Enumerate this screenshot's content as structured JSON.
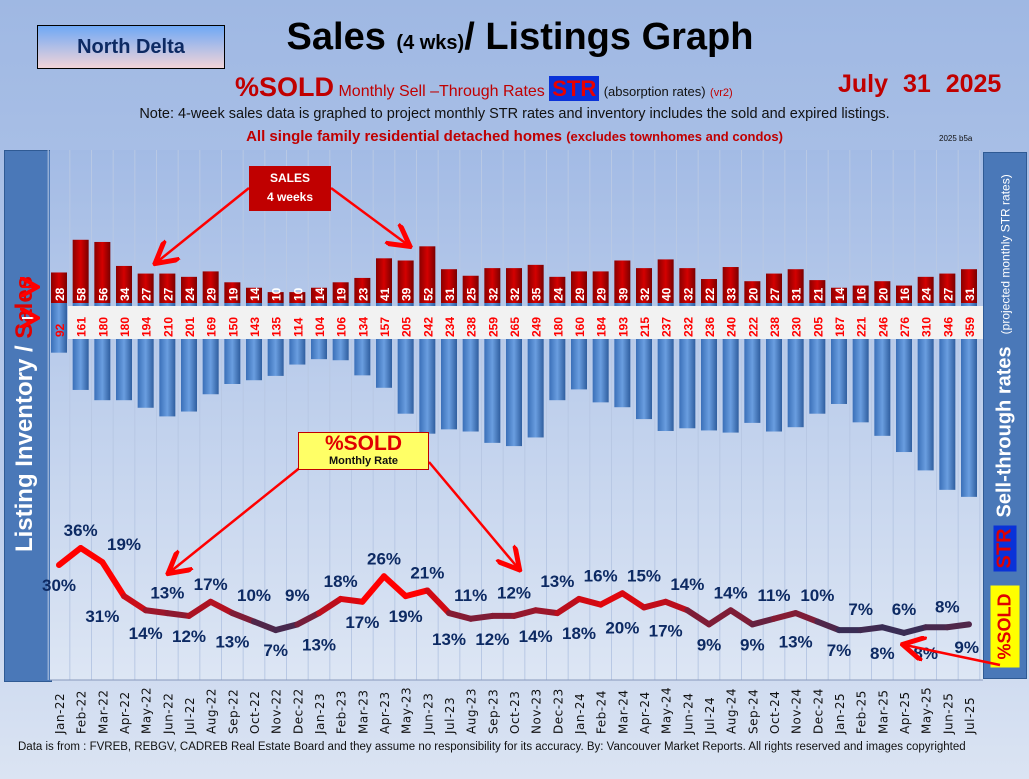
{
  "header": {
    "region": "North Delta",
    "title_main": "Sales",
    "title_small": "(4 wks)",
    "title_rest": "/ Listings Graph",
    "subtitle_sold": "%SOLD",
    "subtitle_text": "Monthly Sell –Through Rates",
    "subtitle_str": "STR",
    "subtitle_abs": "(absorption rates)",
    "subtitle_version": "(vr2)",
    "date": "July 31 2025",
    "note": "Note: 4-week sales data is graphed to project monthly STR rates and inventory includes the sold and expired listings.",
    "scope_main": "All single family residential detached homes",
    "scope_small": "(excludes townhomes and condos)",
    "version_tag": "2025 b5a"
  },
  "left_axis": {
    "label_main": "Listing Inventory /",
    "label_red": "Sales"
  },
  "right_axis": {
    "sold": "%SOLD",
    "str": "STR",
    "label": "Sell-through rates",
    "sublabel": "(projected monthly STR rates)"
  },
  "annotations": {
    "sales_line1": "SALES",
    "sales_line2": "4  weeks",
    "sold_line1": "%SOLD",
    "sold_line2": "Monthly Rate"
  },
  "footer": "Data is from : FVREB, REBGV, CADREB Real Estate Board and they assume no responsibility for its accuracy. By: Vancouver Market Reports. All rights reserved and  images copyrighted",
  "colors": {
    "sales": "#c00000",
    "inventory": "#4a86d0",
    "line_high": "#ff0000",
    "line_low": "#2a2f5a",
    "label": "#0d2a63",
    "inventory_label": "#ff0000"
  },
  "chart_data": {
    "type": "bar+line",
    "categories": [
      "Jan-22",
      "Feb-22",
      "Mar-22",
      "Apr-22",
      "May-22",
      "Jun-22",
      "Jul-22",
      "Aug-22",
      "Sep-22",
      "Oct-22",
      "Nov-22",
      "Dec-22",
      "Jan-23",
      "Feb-23",
      "Mar-23",
      "Apr-23",
      "May-23",
      "Jun-23",
      "Jul-23",
      "Aug-23",
      "Sep-23",
      "Oct-23",
      "Nov-23",
      "Dec-23",
      "Jan-24",
      "Feb-24",
      "Mar-24",
      "Apr-24",
      "May-24",
      "Jun-24",
      "Jul-24",
      "Aug-24",
      "Sep-24",
      "Oct-24",
      "Nov-24",
      "Dec-24",
      "Jan-25",
      "Feb-25",
      "Mar-25",
      "Apr-25",
      "May-25",
      "Jun-25",
      "Jul-25"
    ],
    "series": [
      {
        "name": "SALES 4 weeks",
        "type": "bar",
        "values": [
          28,
          58,
          56,
          34,
          27,
          27,
          24,
          29,
          19,
          14,
          10,
          10,
          14,
          19,
          23,
          41,
          39,
          52,
          31,
          25,
          32,
          32,
          35,
          24,
          29,
          29,
          39,
          32,
          40,
          32,
          22,
          33,
          20,
          27,
          31,
          21,
          14,
          16,
          20,
          16,
          24,
          27,
          31
        ]
      },
      {
        "type": "bar",
        "direction": "down",
        "values": [
          92,
          161,
          180,
          180,
          194,
          210,
          201,
          169,
          150,
          143,
          135,
          114,
          104,
          106,
          134,
          157,
          205,
          242,
          234,
          238,
          259,
          265,
          249,
          180,
          160,
          184,
          193,
          215,
          237,
          232,
          236,
          240,
          222,
          238,
          230,
          205,
          187,
          221,
          246,
          276,
          310,
          346,
          359
        ]
      },
      {
        "name": "%SOLD Monthly Rate",
        "type": "line",
        "unit": "%",
        "values": [
          30,
          36,
          31,
          19,
          14,
          13,
          12,
          17,
          13,
          10,
          7,
          9,
          13,
          18,
          17,
          26,
          19,
          21,
          13,
          11,
          12,
          12,
          14,
          13,
          18,
          16,
          20,
          15,
          17,
          14,
          9,
          14,
          9,
          11,
          13,
          10,
          7,
          7,
          8,
          6,
          8,
          8,
          9
        ]
      }
    ],
    "grid": true
  }
}
